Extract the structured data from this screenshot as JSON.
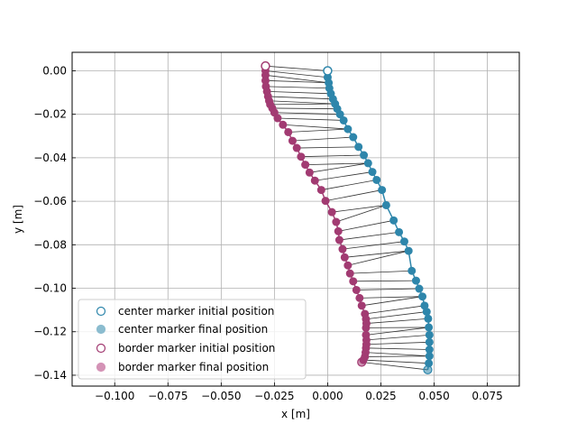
{
  "chart_data": {
    "type": "scatter",
    "title": "",
    "xlabel": "x [m]",
    "ylabel": "y [m]",
    "xlim": [
      -0.12,
      0.09
    ],
    "ylim": [
      -0.145,
      0.0085
    ],
    "xticks": [
      -0.1,
      -0.075,
      -0.05,
      -0.025,
      0.0,
      0.025,
      0.05,
      0.075
    ],
    "xtick_labels": [
      "−0.100",
      "−0.075",
      "−0.050",
      "−0.025",
      "0.000",
      "0.025",
      "0.050",
      "0.075"
    ],
    "yticks": [
      0.0,
      -0.02,
      -0.04,
      -0.06,
      -0.08,
      -0.1,
      -0.12,
      -0.14
    ],
    "ytick_labels": [
      "0.00",
      "−0.02",
      "−0.04",
      "−0.06",
      "−0.08",
      "−0.10",
      "−0.12",
      "−0.14"
    ],
    "grid": true,
    "legend_position": "lower-left",
    "legend": [
      {
        "label": "center marker initial position",
        "style": "hollow",
        "color": "#2e86ab"
      },
      {
        "label": "center marker final position",
        "style": "filled",
        "color": "#8bbccf"
      },
      {
        "label": "border marker initial position",
        "style": "hollow",
        "color": "#a23b72"
      },
      {
        "label": "border marker final position",
        "style": "filled",
        "color": "#d493b6"
      }
    ],
    "colors": {
      "center": "#2e86ab",
      "border": "#a23b72",
      "connector": "#333333"
    },
    "center_path": {
      "x": [
        0.0,
        0.0,
        0.0005,
        0.0008,
        0.0015,
        0.0025,
        0.0035,
        0.0045,
        0.0058,
        0.0075,
        0.0095,
        0.012,
        0.0145,
        0.017,
        0.019,
        0.021,
        0.023,
        0.0255,
        0.0275,
        0.031,
        0.0335,
        0.036,
        0.038,
        0.0395,
        0.0415,
        0.043,
        0.0445,
        0.0455,
        0.0465,
        0.0472,
        0.0475,
        0.0478,
        0.0478,
        0.0478,
        0.0478,
        0.0475,
        0.047
      ],
      "y": [
        0.0,
        -0.003,
        -0.0055,
        -0.008,
        -0.0105,
        -0.013,
        -0.0152,
        -0.0175,
        -0.02,
        -0.0228,
        -0.0268,
        -0.0305,
        -0.035,
        -0.0388,
        -0.0425,
        -0.0465,
        -0.0502,
        -0.0548,
        -0.0618,
        -0.0688,
        -0.0742,
        -0.0785,
        -0.0828,
        -0.092,
        -0.0965,
        -0.1002,
        -0.1038,
        -0.108,
        -0.1108,
        -0.114,
        -0.118,
        -0.1215,
        -0.1248,
        -0.1282,
        -0.1312,
        -0.1345,
        -0.1375
      ]
    },
    "border_path": {
      "x": [
        -0.0292,
        -0.0292,
        -0.0292,
        -0.0292,
        -0.029,
        -0.0285,
        -0.028,
        -0.0275,
        -0.027,
        -0.026,
        -0.025,
        -0.0235,
        -0.021,
        -0.0185,
        -0.0165,
        -0.0145,
        -0.0125,
        -0.0105,
        -0.0085,
        -0.006,
        -0.003,
        -0.001,
        0.002,
        0.004,
        0.005,
        0.0055,
        0.007,
        0.008,
        0.0095,
        0.0105,
        0.012,
        0.0135,
        0.015,
        0.016,
        0.0175,
        0.018,
        0.0182,
        0.018,
        0.018,
        0.0182,
        0.0182,
        0.018,
        0.0178,
        0.0175,
        0.0168,
        0.016
      ],
      "y": [
        0.0022,
        0.0,
        -0.002,
        -0.0045,
        -0.0072,
        -0.0095,
        -0.0118,
        -0.0138,
        -0.0155,
        -0.0172,
        -0.0192,
        -0.0218,
        -0.0248,
        -0.0282,
        -0.0322,
        -0.0355,
        -0.0395,
        -0.0432,
        -0.0468,
        -0.0505,
        -0.0548,
        -0.0598,
        -0.065,
        -0.0695,
        -0.0738,
        -0.0778,
        -0.082,
        -0.0858,
        -0.0895,
        -0.0932,
        -0.0968,
        -0.1008,
        -0.1045,
        -0.108,
        -0.1118,
        -0.1142,
        -0.1162,
        -0.1182,
        -0.1215,
        -0.1238,
        -0.1258,
        -0.1275,
        -0.1295,
        -0.1315,
        -0.133,
        -0.134
      ]
    }
  }
}
